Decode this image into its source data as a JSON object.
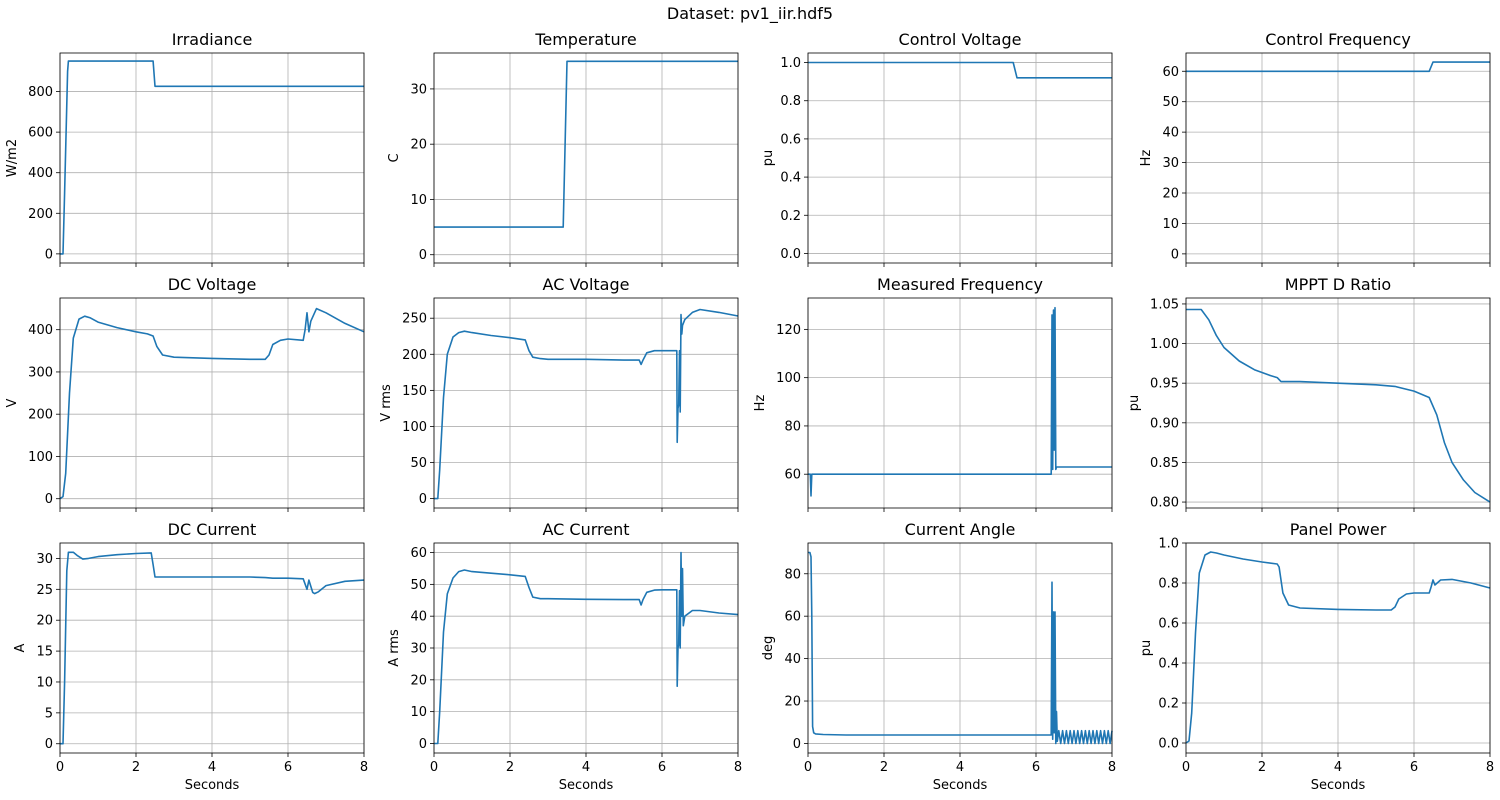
{
  "figure": {
    "title": "Dataset: pv1_iir.hdf5",
    "line_color": "#1f77b4"
  },
  "chart_data": [
    {
      "type": "line",
      "title": "Irradiance",
      "xlabel": "",
      "ylabel": "W/m2",
      "xlim": [
        0,
        8
      ],
      "ylim": [
        -45,
        990
      ],
      "xticks": [
        0,
        2,
        4,
        6,
        8
      ],
      "yticks": [
        0,
        200,
        400,
        600,
        800
      ],
      "show_xticklabels": false,
      "grid": true,
      "series": [
        {
          "x": [
            0,
            0.08,
            0.12,
            0.2,
            0.22,
            2.4,
            2.45,
            2.5,
            8
          ],
          "y": [
            0,
            0,
            300,
            900,
            950,
            950,
            950,
            826,
            826
          ]
        }
      ]
    },
    {
      "type": "line",
      "title": "Temperature",
      "xlabel": "",
      "ylabel": "C",
      "xlim": [
        0,
        8
      ],
      "ylim": [
        -1.5,
        36.5
      ],
      "xticks": [
        0,
        2,
        4,
        6,
        8
      ],
      "yticks": [
        0,
        10,
        20,
        30
      ],
      "show_xticklabels": false,
      "grid": true,
      "series": [
        {
          "x": [
            0,
            3.4,
            3.5,
            8
          ],
          "y": [
            5,
            5,
            35,
            35
          ]
        }
      ]
    },
    {
      "type": "line",
      "title": "Control Voltage",
      "xlabel": "",
      "ylabel": "pu",
      "xlim": [
        0,
        8
      ],
      "ylim": [
        -0.05,
        1.05
      ],
      "xticks": [
        0,
        2,
        4,
        6,
        8
      ],
      "yticks": [
        0.0,
        0.2,
        0.4,
        0.6,
        0.8,
        1.0
      ],
      "yfmt": 1,
      "show_xticklabels": false,
      "grid": true,
      "series": [
        {
          "x": [
            0,
            5.4,
            5.5,
            8
          ],
          "y": [
            1.0,
            1.0,
            0.92,
            0.92
          ]
        }
      ]
    },
    {
      "type": "line",
      "title": "Control Frequency",
      "xlabel": "",
      "ylabel": "Hz",
      "xlim": [
        0,
        8
      ],
      "ylim": [
        -3,
        66
      ],
      "xticks": [
        0,
        2,
        4,
        6,
        8
      ],
      "yticks": [
        0,
        10,
        20,
        30,
        40,
        50,
        60
      ],
      "show_xticklabels": false,
      "grid": true,
      "series": [
        {
          "x": [
            0,
            6.4,
            6.5,
            8
          ],
          "y": [
            60,
            60,
            63,
            63
          ]
        }
      ]
    },
    {
      "type": "line",
      "title": "DC Voltage",
      "xlabel": "",
      "ylabel": "V",
      "xlim": [
        0,
        8
      ],
      "ylim": [
        -22,
        475
      ],
      "xticks": [
        0,
        2,
        4,
        6,
        8
      ],
      "yticks": [
        0,
        100,
        200,
        300,
        400
      ],
      "show_xticklabels": false,
      "grid": true,
      "series": [
        {
          "x": [
            0,
            0.08,
            0.15,
            0.25,
            0.35,
            0.5,
            0.65,
            0.8,
            1.0,
            1.5,
            2.0,
            2.3,
            2.45,
            2.55,
            2.7,
            3.0,
            4.0,
            5.0,
            5.4,
            5.5,
            5.6,
            5.8,
            6.0,
            6.4,
            6.45,
            6.5,
            6.55,
            6.6,
            6.75,
            7.0,
            7.5,
            8.0
          ],
          "y": [
            0,
            5,
            60,
            250,
            380,
            425,
            432,
            428,
            418,
            405,
            395,
            390,
            385,
            360,
            340,
            335,
            332,
            330,
            330,
            340,
            365,
            375,
            378,
            375,
            400,
            440,
            395,
            420,
            450,
            440,
            415,
            395
          ]
        }
      ]
    },
    {
      "type": "line",
      "title": "AC Voltage",
      "xlabel": "",
      "ylabel": "V rms",
      "xlim": [
        0,
        8
      ],
      "ylim": [
        -13,
        278
      ],
      "xticks": [
        0,
        2,
        4,
        6,
        8
      ],
      "yticks": [
        0,
        50,
        100,
        150,
        200,
        250
      ],
      "show_xticklabels": false,
      "grid": true,
      "series": [
        {
          "x": [
            0,
            0.1,
            0.15,
            0.25,
            0.35,
            0.5,
            0.65,
            0.8,
            1.0,
            1.5,
            2.0,
            2.4,
            2.5,
            2.6,
            2.8,
            3.0,
            4.0,
            5.0,
            5.4,
            5.45,
            5.5,
            5.6,
            5.8,
            6.0,
            6.39,
            6.4,
            6.42,
            6.44,
            6.46,
            6.48,
            6.5,
            6.52,
            6.54,
            6.6,
            6.8,
            7.0,
            7.5,
            8.0
          ],
          "y": [
            0,
            0,
            40,
            140,
            200,
            224,
            230,
            232,
            230,
            226,
            223,
            220,
            205,
            196,
            194,
            193,
            193,
            192,
            192,
            186,
            192,
            202,
            205,
            205,
            205,
            78,
            125,
            130,
            205,
            120,
            255,
            228,
            240,
            248,
            258,
            262,
            258,
            253
          ]
        }
      ]
    },
    {
      "type": "line",
      "title": "Measured Frequency",
      "xlabel": "",
      "ylabel": "Hz",
      "xlim": [
        0,
        8
      ],
      "ylim": [
        46,
        133
      ],
      "xticks": [
        0,
        2,
        4,
        6,
        8
      ],
      "yticks": [
        60,
        80,
        100,
        120
      ],
      "show_xticklabels": false,
      "grid": true,
      "series": [
        {
          "x": [
            0,
            0.06,
            0.08,
            0.1,
            0.12,
            0.2,
            6.4,
            6.42,
            6.44,
            6.46,
            6.48,
            6.5,
            6.52,
            6.54,
            6.6,
            8.0
          ],
          "y": [
            60,
            60,
            51,
            60,
            60,
            60,
            60,
            126,
            62,
            128,
            70,
            129,
            62,
            63,
            63,
            63
          ]
        }
      ]
    },
    {
      "type": "line",
      "title": "MPPT D Ratio",
      "xlabel": "",
      "ylabel": "pu",
      "xlim": [
        0,
        8
      ],
      "ylim": [
        0.7925,
        1.0575
      ],
      "xticks": [
        0,
        2,
        4,
        6,
        8
      ],
      "yticks": [
        0.8,
        0.85,
        0.9,
        0.95,
        1.0,
        1.05
      ],
      "yfmt": 2,
      "show_xticklabels": false,
      "grid": true,
      "series": [
        {
          "x": [
            0,
            0.4,
            0.6,
            0.8,
            1.0,
            1.4,
            1.8,
            2.2,
            2.4,
            2.5,
            3.0,
            4.0,
            5.0,
            5.5,
            6.0,
            6.4,
            6.6,
            6.8,
            7.0,
            7.3,
            7.6,
            8.0
          ],
          "y": [
            1.043,
            1.043,
            1.03,
            1.01,
            0.995,
            0.978,
            0.967,
            0.96,
            0.957,
            0.952,
            0.952,
            0.95,
            0.948,
            0.946,
            0.94,
            0.932,
            0.91,
            0.875,
            0.85,
            0.828,
            0.812,
            0.8
          ]
        }
      ]
    },
    {
      "type": "line",
      "title": "DC Current",
      "xlabel": "Seconds",
      "ylabel": "A",
      "xlim": [
        0,
        8
      ],
      "ylim": [
        -1.5,
        32.5
      ],
      "xticks": [
        0,
        2,
        4,
        6,
        8
      ],
      "yticks": [
        0,
        5,
        10,
        15,
        20,
        25,
        30
      ],
      "show_xticklabels": true,
      "grid": true,
      "series": [
        {
          "x": [
            0,
            0.08,
            0.12,
            0.18,
            0.22,
            0.35,
            0.45,
            0.6,
            0.75,
            1.0,
            1.5,
            2.0,
            2.4,
            2.45,
            2.5,
            3.0,
            4.0,
            5.0,
            5.4,
            5.6,
            6.0,
            6.4,
            6.5,
            6.55,
            6.6,
            6.65,
            6.7,
            6.8,
            7.0,
            7.5,
            8.0
          ],
          "y": [
            0,
            0,
            10,
            28,
            31,
            31,
            30.5,
            29.9,
            30.0,
            30.3,
            30.6,
            30.8,
            30.9,
            29,
            27,
            27,
            27,
            27,
            26.9,
            26.8,
            26.8,
            26.7,
            25,
            26.5,
            25.5,
            24.5,
            24.3,
            24.6,
            25.6,
            26.3,
            26.5
          ]
        }
      ]
    },
    {
      "type": "line",
      "title": "AC Current",
      "xlabel": "Seconds",
      "ylabel": "A rms",
      "xlim": [
        0,
        8
      ],
      "ylim": [
        -3,
        63
      ],
      "xticks": [
        0,
        2,
        4,
        6,
        8
      ],
      "yticks": [
        0,
        10,
        20,
        30,
        40,
        50,
        60
      ],
      "show_xticklabels": true,
      "grid": true,
      "series": [
        {
          "x": [
            0,
            0.1,
            0.15,
            0.25,
            0.35,
            0.5,
            0.65,
            0.8,
            1.0,
            1.5,
            2.0,
            2.4,
            2.5,
            2.6,
            2.8,
            3.0,
            4.0,
            5.0,
            5.4,
            5.45,
            5.5,
            5.6,
            5.8,
            6.0,
            6.39,
            6.4,
            6.42,
            6.44,
            6.46,
            6.48,
            6.5,
            6.52,
            6.54,
            6.56,
            6.6,
            6.8,
            7.0,
            7.5,
            8.0
          ],
          "y": [
            0,
            0,
            10,
            35,
            47,
            52,
            54,
            54.5,
            54,
            53.5,
            53,
            52.5,
            49,
            46,
            45.5,
            45.5,
            45.3,
            45.2,
            45.2,
            43.5,
            45.2,
            47.5,
            48.2,
            48.3,
            48.3,
            18,
            30,
            31,
            48,
            30,
            60,
            40,
            55,
            37,
            40,
            41.8,
            41.8,
            41,
            40.5
          ]
        }
      ]
    },
    {
      "type": "line",
      "title": "Current Angle",
      "xlabel": "Seconds",
      "ylabel": "deg",
      "xlim": [
        0,
        8
      ],
      "ylim": [
        -4.5,
        94.5
      ],
      "xticks": [
        0,
        2,
        4,
        6,
        8
      ],
      "yticks": [
        0,
        20,
        40,
        60,
        80
      ],
      "show_xticklabels": true,
      "grid": true,
      "series": [
        {
          "x": [
            0,
            0.05,
            0.08,
            0.1,
            0.12,
            0.15,
            0.2,
            0.4,
            1.0,
            2.0,
            3.0,
            4.0,
            5.0,
            6.0,
            6.4,
            6.42,
            6.44,
            6.46,
            6.48,
            6.5,
            6.52,
            6.54,
            6.56,
            6.6,
            6.65,
            6.7,
            6.75,
            6.8,
            6.85,
            6.9,
            6.95,
            7.0,
            7.05,
            7.1,
            7.15,
            7.2,
            7.25,
            7.3,
            7.35,
            7.4,
            7.45,
            7.5,
            7.55,
            7.6,
            7.65,
            7.7,
            7.75,
            7.8,
            7.85,
            7.9,
            7.95,
            8.0
          ],
          "y": [
            90,
            90,
            88,
            60,
            8,
            5,
            4.5,
            4.2,
            4.0,
            4.0,
            4.0,
            4.0,
            4.0,
            4.0,
            4.0,
            76,
            2,
            62,
            5,
            62,
            0,
            15,
            1,
            6,
            0,
            6,
            0,
            6,
            0,
            6,
            0,
            6,
            0,
            6,
            0,
            6,
            0,
            6,
            0,
            6,
            0,
            6,
            0,
            6,
            0,
            6,
            0,
            6,
            0,
            6,
            0,
            6
          ]
        }
      ]
    },
    {
      "type": "line",
      "title": "Panel Power",
      "xlabel": "Seconds",
      "ylabel": "pu",
      "xlim": [
        0,
        8
      ],
      "ylim": [
        -0.05,
        1.0
      ],
      "xticks": [
        0,
        2,
        4,
        6,
        8
      ],
      "yticks": [
        0.0,
        0.2,
        0.4,
        0.6,
        0.8,
        1.0
      ],
      "yfmt": 1,
      "show_xticklabels": true,
      "grid": true,
      "series": [
        {
          "x": [
            0,
            0.08,
            0.15,
            0.25,
            0.35,
            0.5,
            0.65,
            0.8,
            1.0,
            1.5,
            2.0,
            2.4,
            2.45,
            2.55,
            2.7,
            3.0,
            4.0,
            5.0,
            5.4,
            5.5,
            5.6,
            5.8,
            6.0,
            6.4,
            6.45,
            6.5,
            6.55,
            6.7,
            7.0,
            7.5,
            8.0
          ],
          "y": [
            0,
            0.01,
            0.15,
            0.55,
            0.85,
            0.94,
            0.955,
            0.95,
            0.94,
            0.92,
            0.905,
            0.895,
            0.88,
            0.75,
            0.69,
            0.675,
            0.668,
            0.665,
            0.665,
            0.68,
            0.72,
            0.745,
            0.75,
            0.75,
            0.78,
            0.815,
            0.79,
            0.815,
            0.818,
            0.8,
            0.775
          ]
        }
      ]
    }
  ]
}
